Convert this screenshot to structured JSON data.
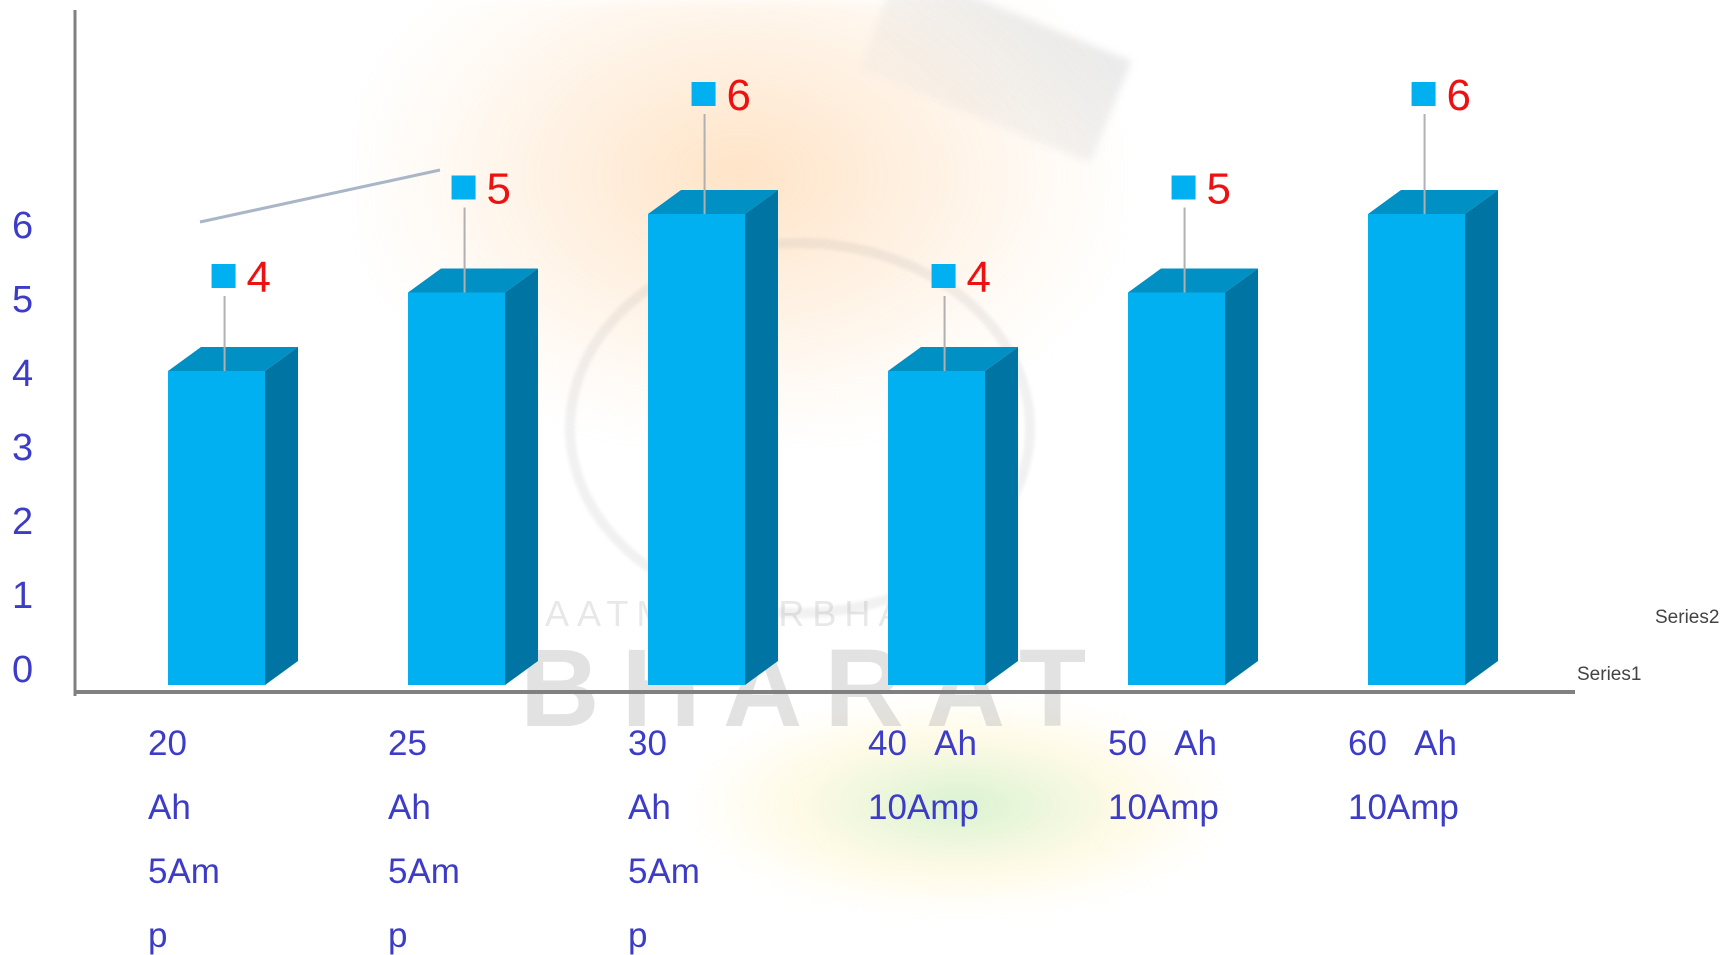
{
  "chart_data": {
    "type": "bar",
    "categories": [
      [
        "20",
        "Ah",
        "5Am",
        "p"
      ],
      [
        "25",
        "Ah",
        "5Am",
        "p"
      ],
      [
        "30",
        "Ah",
        "5Am",
        "p"
      ],
      [
        "40   Ah",
        "10Amp"
      ],
      [
        "50   Ah",
        "10Amp"
      ],
      [
        "60   Ah",
        "10Amp"
      ]
    ],
    "series": [
      {
        "name": "Series1",
        "values": [
          4,
          5,
          6,
          4,
          5,
          6
        ],
        "color": "#00b0f0"
      },
      {
        "name": "Series2",
        "values": [
          4,
          5,
          6,
          4,
          5,
          6
        ],
        "color": "#00b0f0"
      }
    ],
    "data_labels": [
      "4",
      "5",
      "6",
      "4",
      "5",
      "6"
    ],
    "y_ticks": [
      "0",
      "1",
      "2",
      "3",
      "4",
      "5",
      "6"
    ],
    "ylim": [
      0,
      6
    ],
    "grid": false,
    "legend_position": "right",
    "bar_side_color": "#0074a2",
    "bar_top_color": "#0090c4",
    "label_color": "#ee1111",
    "tick_color": "#3c3cc8",
    "axis_color": "#808080"
  },
  "watermark": {
    "word": "BHARAT",
    "subtext": "AATMA-NIRBHAR"
  }
}
